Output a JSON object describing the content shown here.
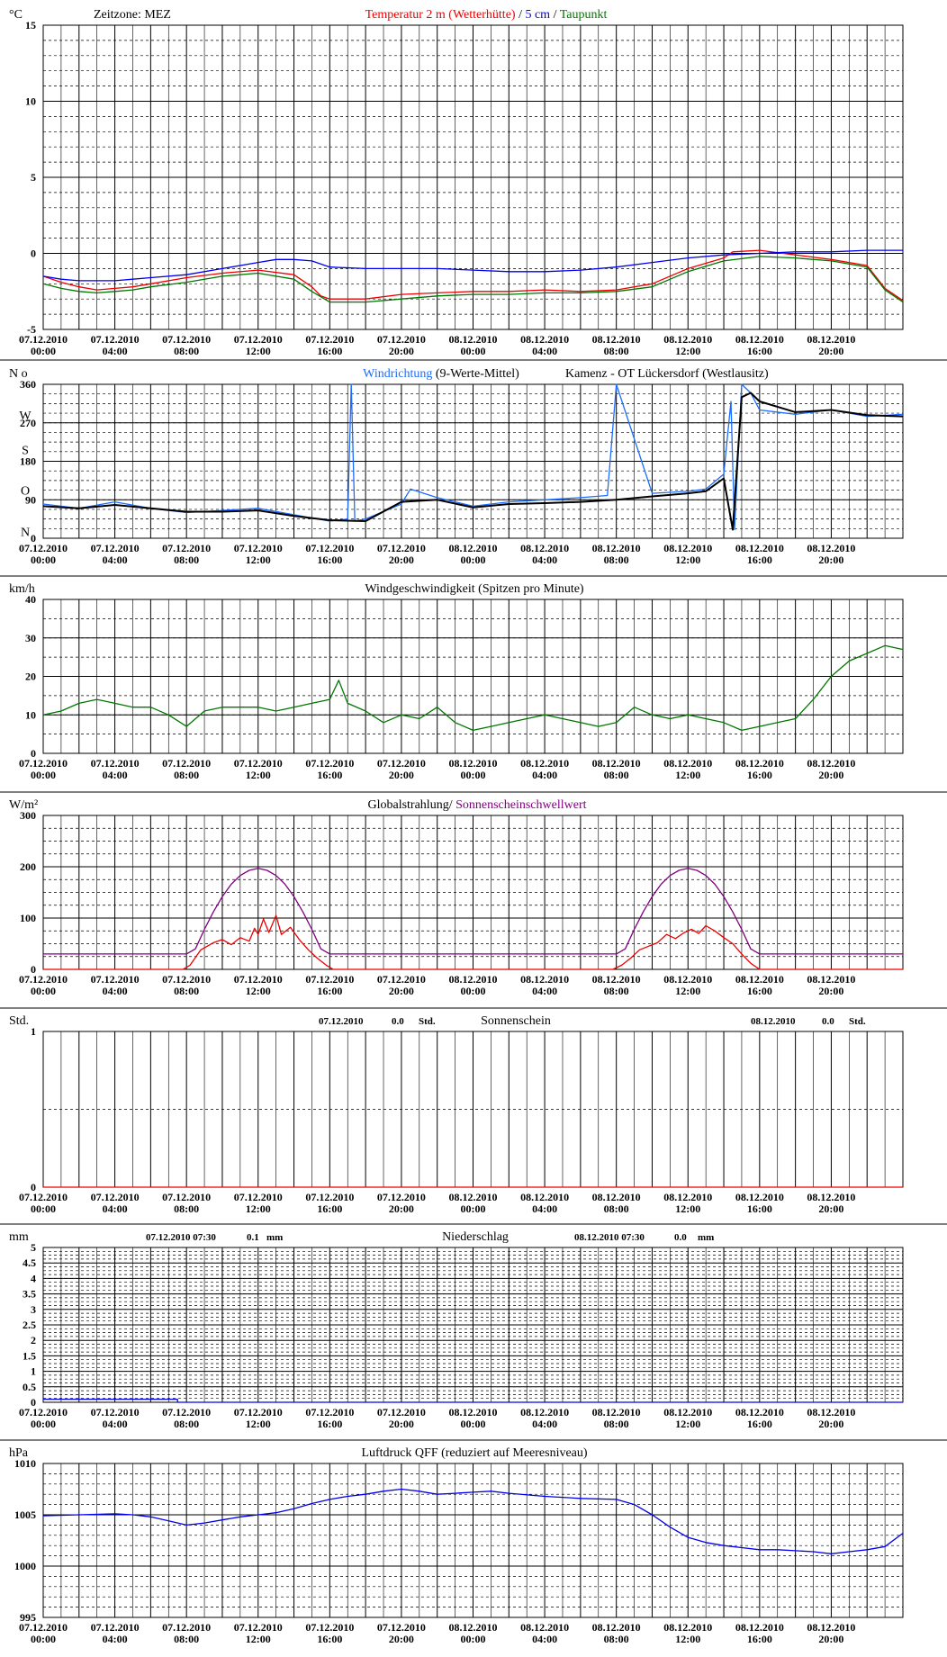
{
  "colors": {
    "red": "#ee0000",
    "blue": "#0000ee",
    "green": "#007700",
    "lightblue": "#1d6cff",
    "purple": "#800080",
    "black": "#000000"
  },
  "x_axis": {
    "dates": [
      "07.12.2010",
      "07.12.2010",
      "07.12.2010",
      "07.12.2010",
      "07.12.2010",
      "07.12.2010",
      "08.12.2010",
      "08.12.2010",
      "08.12.2010",
      "08.12.2010",
      "08.12.2010",
      "08.12.2010"
    ],
    "times": [
      "00:00",
      "04:00",
      "08:00",
      "12:00",
      "16:00",
      "20:00",
      "00:00",
      "04:00",
      "08:00",
      "12:00",
      "16:00",
      "20:00"
    ]
  },
  "chart_data": [
    {
      "id": "temperature",
      "type": "line",
      "title_parts": [
        "Temperatur 2 m (Wetterhütte)",
        " / ",
        "5 cm",
        " / ",
        "Taupunkt"
      ],
      "title_colors": [
        "red",
        "black",
        "blue",
        "black",
        "green"
      ],
      "zone_label": "Zeitzone: MEZ",
      "unit": "°C",
      "ylim": [
        -5,
        15
      ],
      "yticks": [
        15,
        10,
        5,
        0,
        -5
      ],
      "x_unit": "hours since 07.12.2010 00:00",
      "xlim": [
        0,
        48
      ],
      "series": [
        {
          "name": "Temperatur 2 m (Wetterhütte)",
          "color": "red",
          "x": [
            0,
            1,
            2,
            3,
            4,
            5,
            6,
            8,
            10,
            12,
            14,
            15,
            15.5,
            16,
            18,
            20,
            22,
            24,
            26,
            28,
            30,
            32,
            34,
            36,
            38,
            38.5,
            40,
            42,
            44,
            46,
            47,
            48
          ],
          "y": [
            -1.5,
            -1.9,
            -2.2,
            -2.4,
            -2.3,
            -2.2,
            -2.0,
            -1.6,
            -1.3,
            -1.1,
            -1.4,
            -2.2,
            -2.8,
            -3.0,
            -3.0,
            -2.7,
            -2.6,
            -2.5,
            -2.5,
            -2.4,
            -2.5,
            -2.4,
            -2.0,
            -1.0,
            -0.3,
            0.1,
            0.2,
            -0.1,
            -0.4,
            -0.8,
            -2.3,
            -3.1
          ]
        },
        {
          "name": "5 cm",
          "color": "blue",
          "x": [
            0,
            1,
            2,
            3,
            4,
            5,
            6,
            8,
            10,
            12,
            13,
            14,
            15,
            16,
            18,
            20,
            22,
            24,
            26,
            28,
            30,
            32,
            34,
            36,
            38,
            40,
            42,
            44,
            46,
            48
          ],
          "y": [
            -1.5,
            -1.7,
            -1.8,
            -1.8,
            -1.8,
            -1.7,
            -1.6,
            -1.4,
            -1.0,
            -0.6,
            -0.4,
            -0.4,
            -0.5,
            -0.9,
            -1.0,
            -1.0,
            -1.0,
            -1.1,
            -1.2,
            -1.2,
            -1.1,
            -0.9,
            -0.6,
            -0.3,
            -0.1,
            0.0,
            0.1,
            0.1,
            0.2,
            0.2
          ]
        },
        {
          "name": "Taupunkt",
          "color": "green",
          "x": [
            0,
            1,
            2,
            3,
            4,
            5,
            6,
            8,
            10,
            12,
            14,
            15,
            16,
            18,
            20,
            22,
            24,
            26,
            28,
            30,
            32,
            34,
            36,
            38,
            40,
            42,
            44,
            46,
            47,
            48
          ],
          "y": [
            -2.0,
            -2.3,
            -2.5,
            -2.6,
            -2.5,
            -2.4,
            -2.2,
            -1.9,
            -1.5,
            -1.3,
            -1.7,
            -2.5,
            -3.2,
            -3.2,
            -3.0,
            -2.8,
            -2.7,
            -2.7,
            -2.6,
            -2.6,
            -2.5,
            -2.2,
            -1.2,
            -0.5,
            -0.2,
            -0.3,
            -0.5,
            -0.9,
            -2.4,
            -3.2
          ]
        }
      ]
    },
    {
      "id": "wind-direction",
      "type": "line",
      "title_parts": [
        "Windrichtung",
        " (9-Werte-Mittel)"
      ],
      "title_colors": [
        "lightblue",
        "black"
      ],
      "station": "Kamenz - OT Lückersdorf (Westlausitz)",
      "unit": "N o",
      "ylim": [
        0,
        360
      ],
      "yticks": [
        360,
        270,
        180,
        90,
        0
      ],
      "compass_labels": [
        "W",
        "S",
        "O",
        "N"
      ],
      "compass_values": [
        288,
        207,
        113,
        16
      ],
      "x_unit": "hours since 07.12.2010 00:00",
      "xlim": [
        0,
        48
      ],
      "series": [
        {
          "name": "Windrichtung",
          "color": "lightblue",
          "x": [
            0,
            2,
            4,
            6,
            8,
            10,
            12,
            14,
            16,
            17,
            17.2,
            17.4,
            18,
            20,
            20.5,
            22,
            24,
            26,
            28,
            30,
            31.5,
            32,
            34,
            36,
            37,
            38,
            38.4,
            38.6,
            39,
            39.5,
            40,
            42,
            44,
            46,
            48
          ],
          "y": [
            80,
            70,
            85,
            70,
            60,
            65,
            70,
            55,
            40,
            45,
            360,
            40,
            45,
            80,
            115,
            95,
            75,
            85,
            90,
            95,
            100,
            360,
            105,
            110,
            115,
            150,
            320,
            20,
            360,
            340,
            300,
            290,
            300,
            285,
            290
          ]
        },
        {
          "name": "9-Werte-Mittel",
          "color": "black",
          "x": [
            0,
            2,
            4,
            6,
            8,
            10,
            12,
            14,
            16,
            18,
            20,
            22,
            24,
            26,
            28,
            30,
            32,
            34,
            36,
            37,
            38,
            38.5,
            39,
            39.5,
            40,
            42,
            44,
            46,
            48
          ],
          "y": [
            75,
            70,
            78,
            70,
            62,
            62,
            65,
            52,
            42,
            40,
            85,
            90,
            72,
            80,
            82,
            85,
            90,
            98,
            105,
            110,
            140,
            20,
            330,
            340,
            320,
            295,
            300,
            288,
            285
          ]
        }
      ]
    },
    {
      "id": "wind-speed",
      "type": "line",
      "title": "Windgeschwindigkeit (Spitzen pro Minute)",
      "unit": "km/h",
      "ylim": [
        0,
        40
      ],
      "yticks": [
        40,
        30,
        20,
        10,
        0
      ],
      "x_unit": "hours since 07.12.2010 00:00",
      "xlim": [
        0,
        48
      ],
      "series": [
        {
          "name": "Windgeschwindigkeit",
          "color": "green",
          "x": [
            0,
            1,
            2,
            3,
            4,
            5,
            6,
            7,
            8,
            9,
            10,
            11,
            12,
            13,
            14,
            15,
            16,
            16.5,
            17,
            18,
            19,
            20,
            21,
            22,
            23,
            24,
            25,
            26,
            27,
            28,
            29,
            30,
            31,
            32,
            33,
            34,
            35,
            36,
            37,
            38,
            39,
            40,
            41,
            42,
            43,
            44,
            45,
            46,
            47,
            48
          ],
          "y": [
            10,
            11,
            13,
            14,
            13,
            12,
            12,
            10,
            7,
            11,
            12,
            12,
            12,
            11,
            12,
            13,
            14,
            19,
            13,
            11,
            8,
            10,
            9,
            12,
            8,
            6,
            7,
            8,
            9,
            10,
            9,
            8,
            7,
            8,
            12,
            10,
            9,
            10,
            9,
            8,
            6,
            7,
            8,
            9,
            14,
            20,
            24,
            26,
            28,
            27
          ]
        }
      ]
    },
    {
      "id": "radiation",
      "type": "line",
      "title_parts": [
        "Globalstrahlung/ ",
        "Sonnenscheinschwellwert"
      ],
      "title_colors": [
        "black",
        "purple"
      ],
      "unit": "W/m²",
      "ylim": [
        0,
        300
      ],
      "yticks": [
        300,
        200,
        100,
        0
      ],
      "x_unit": "hours since 07.12.2010 00:00",
      "xlim": [
        0,
        48
      ],
      "series": [
        {
          "name": "Sonnenscheinschwellwert",
          "color": "purple",
          "x": [
            0,
            8,
            8.5,
            9,
            9.5,
            10,
            10.5,
            11,
            11.5,
            12,
            12.5,
            13,
            13.5,
            14,
            14.5,
            15,
            15.5,
            16,
            32,
            32.5,
            33,
            33.5,
            34,
            34.5,
            35,
            35.5,
            36,
            36.5,
            37,
            37.5,
            38,
            38.5,
            39,
            39.5,
            40,
            48
          ],
          "y": [
            30,
            30,
            40,
            78,
            112,
            142,
            166,
            183,
            193,
            197,
            193,
            183,
            166,
            142,
            112,
            78,
            40,
            30,
            30,
            40,
            78,
            112,
            142,
            166,
            183,
            193,
            197,
            193,
            183,
            166,
            142,
            112,
            78,
            40,
            30,
            30
          ]
        },
        {
          "name": "Globalstrahlung",
          "color": "red",
          "x": [
            0,
            7.8,
            8.2,
            8.8,
            9.5,
            10,
            10.5,
            11,
            11.5,
            11.8,
            12,
            12.3,
            12.6,
            13,
            13.3,
            13.8,
            14.3,
            14.8,
            15.3,
            15.8,
            16.2,
            31.8,
            32.3,
            32.8,
            33.3,
            33.8,
            34.3,
            34.8,
            35.3,
            35.8,
            36.2,
            36.6,
            37,
            37.5,
            38,
            38.5,
            39,
            39.5,
            40,
            48
          ],
          "y": [
            0,
            0,
            8,
            38,
            52,
            58,
            48,
            62,
            55,
            80,
            68,
            98,
            72,
            105,
            68,
            82,
            58,
            38,
            22,
            8,
            0,
            0,
            8,
            22,
            38,
            45,
            52,
            68,
            60,
            72,
            78,
            70,
            85,
            75,
            62,
            50,
            30,
            12,
            0,
            0
          ]
        }
      ]
    },
    {
      "id": "sunshine",
      "type": "line",
      "title": "Sonnenschein",
      "unit": "Std.",
      "ylim": [
        0,
        1
      ],
      "yticks": [
        1.0,
        0.0
      ],
      "info_left": [
        "07.12.2010",
        "0.0",
        "Std."
      ],
      "info_right": [
        "08.12.2010",
        "0.0",
        "Std."
      ],
      "x_unit": "hours since 07.12.2010 00:00",
      "xlim": [
        0,
        48
      ],
      "series": [
        {
          "name": "Sonnenschein",
          "color": "red",
          "x": [
            0,
            48
          ],
          "y": [
            0,
            0
          ]
        }
      ]
    },
    {
      "id": "precipitation",
      "type": "line",
      "title": "Niederschlag",
      "unit": "mm",
      "ylim": [
        0,
        5
      ],
      "yticks": [
        5.0,
        4.5,
        4.0,
        3.5,
        3.0,
        2.5,
        2.0,
        1.5,
        1.0,
        0.5,
        0.0
      ],
      "info_left": [
        "07.12.2010 07:30",
        "0.1",
        "mm"
      ],
      "info_right": [
        "08.12.2010 07:30",
        "0.0",
        "mm"
      ],
      "x_unit": "hours since 07.12.2010 00:00",
      "xlim": [
        0,
        48
      ],
      "series": [
        {
          "name": "Niederschlag",
          "color": "blue",
          "x": [
            0,
            7.5,
            7.5,
            48
          ],
          "y": [
            0.1,
            0.1,
            0,
            0
          ]
        }
      ]
    },
    {
      "id": "pressure",
      "type": "line",
      "title": "Luftdruck QFF (reduziert auf Meeresniveau)",
      "unit": "hPa",
      "ylim": [
        995,
        1010
      ],
      "yticks": [
        1010,
        1005,
        1000,
        995
      ],
      "x_unit": "hours since 07.12.2010 00:00",
      "xlim": [
        0,
        48
      ],
      "series": [
        {
          "name": "Luftdruck QFF",
          "color": "blue",
          "x": [
            0,
            2,
            4,
            5,
            6,
            7,
            8,
            9,
            10,
            11,
            12,
            13,
            14,
            15,
            16,
            17,
            18,
            19,
            20,
            21,
            22,
            23,
            24,
            25,
            26,
            28,
            30,
            32,
            33,
            34,
            35,
            36,
            37,
            38,
            39,
            40,
            41,
            42,
            43,
            44,
            45,
            46,
            47,
            48
          ],
          "y": [
            1004.9,
            1005.0,
            1005.1,
            1005.0,
            1004.8,
            1004.4,
            1004.0,
            1004.2,
            1004.5,
            1004.8,
            1005.0,
            1005.2,
            1005.6,
            1006.1,
            1006.5,
            1006.8,
            1007.0,
            1007.3,
            1007.5,
            1007.3,
            1007.0,
            1007.1,
            1007.2,
            1007.3,
            1007.1,
            1006.8,
            1006.6,
            1006.5,
            1006.0,
            1005.0,
            1003.8,
            1002.8,
            1002.3,
            1002.0,
            1001.8,
            1001.6,
            1001.6,
            1001.5,
            1001.4,
            1001.2,
            1001.4,
            1001.6,
            1001.9,
            1003.2
          ]
        }
      ]
    }
  ]
}
